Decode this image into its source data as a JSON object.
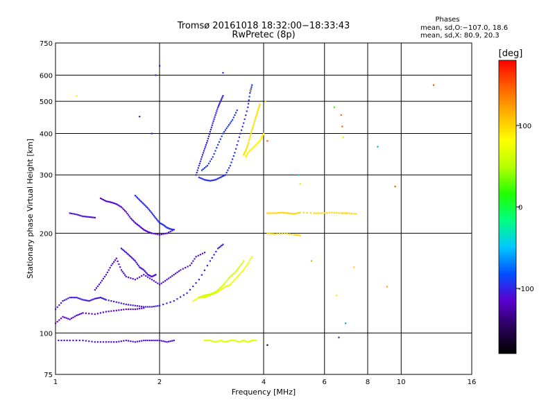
{
  "chart_data": {
    "type": "scatter",
    "title": "Tromsø 20161018 18:32:00−18:33:43",
    "subtitle": "RwPretec (8p)",
    "info_title": "Phases",
    "info_line1": "mean, sd,O:−107.0, 18.6",
    "info_line2": "mean, sd,X:  80.9, 20.3",
    "xlabel": "Frequency [MHz]",
    "ylabel": "Stationary phase Virtual Height [km]",
    "x_scale": "log",
    "y_scale": "log",
    "xlim": [
      1,
      16
    ],
    "ylim": [
      75,
      750
    ],
    "x_ticks": [
      1,
      2,
      4,
      6,
      8,
      10,
      16
    ],
    "y_ticks": [
      75,
      100,
      200,
      300,
      400,
      500,
      600,
      750
    ],
    "x_gridlines": [
      2,
      4,
      6,
      8,
      10
    ],
    "y_gridlines": [
      100,
      200,
      300,
      400,
      500,
      600
    ],
    "colorbar": {
      "label": "[deg]",
      "ticks": [
        100,
        0,
        -100
      ],
      "range": [
        -180,
        180
      ],
      "colors": [
        "#000000",
        "#2a005a",
        "#5a00d0",
        "#0050ff",
        "#00c8ff",
        "#00ff80",
        "#20ff00",
        "#b4ff00",
        "#ffff00",
        "#ffb400",
        "#ff6000",
        "#ff0000"
      ]
    },
    "traces": [
      {
        "phase": -105,
        "points": [
          [
            1.0,
            118
          ],
          [
            1.05,
            125
          ],
          [
            1.1,
            128
          ],
          [
            1.15,
            128
          ],
          [
            1.2,
            126
          ],
          [
            1.25,
            125
          ],
          [
            1.3,
            127
          ],
          [
            1.35,
            128
          ],
          [
            1.4,
            126
          ],
          [
            1.5,
            124
          ],
          [
            1.6,
            122
          ],
          [
            1.7,
            121
          ],
          [
            1.8,
            120
          ],
          [
            1.9,
            120
          ],
          [
            2.0,
            121
          ],
          [
            2.2,
            125
          ],
          [
            2.4,
            132
          ],
          [
            2.6,
            145
          ],
          [
            2.8,
            165
          ],
          [
            2.95,
            180
          ],
          [
            3.05,
            185
          ]
        ]
      },
      {
        "phase": -115,
        "points": [
          [
            1.0,
            107
          ],
          [
            1.05,
            112
          ],
          [
            1.1,
            110
          ],
          [
            1.15,
            113
          ],
          [
            1.2,
            115
          ],
          [
            1.3,
            114
          ],
          [
            1.4,
            116
          ],
          [
            1.5,
            117
          ],
          [
            1.6,
            118
          ],
          [
            1.7,
            118
          ],
          [
            1.8,
            119
          ]
        ]
      },
      {
        "phase": -110,
        "points": [
          [
            1.3,
            135
          ],
          [
            1.35,
            142
          ],
          [
            1.4,
            150
          ],
          [
            1.45,
            160
          ],
          [
            1.5,
            168
          ],
          [
            1.55,
            155
          ],
          [
            1.6,
            148
          ],
          [
            1.7,
            145
          ],
          [
            1.8,
            150
          ],
          [
            1.9,
            145
          ],
          [
            2.0,
            140
          ],
          [
            2.1,
            145
          ],
          [
            2.2,
            150
          ],
          [
            2.3,
            155
          ],
          [
            2.45,
            160
          ],
          [
            2.55,
            170
          ],
          [
            2.7,
            175
          ]
        ]
      },
      {
        "phase": -108,
        "points": [
          [
            1.55,
            180
          ],
          [
            1.6,
            175
          ],
          [
            1.65,
            170
          ],
          [
            1.7,
            165
          ],
          [
            1.75,
            158
          ],
          [
            1.8,
            155
          ],
          [
            1.85,
            150
          ],
          [
            1.9,
            148
          ],
          [
            1.95,
            150
          ]
        ]
      },
      {
        "phase": -112,
        "points": [
          [
            1.35,
            255
          ],
          [
            1.4,
            250
          ],
          [
            1.45,
            248
          ],
          [
            1.5,
            245
          ],
          [
            1.55,
            240
          ],
          [
            1.6,
            232
          ],
          [
            1.65,
            222
          ],
          [
            1.7,
            215
          ],
          [
            1.75,
            210
          ],
          [
            1.8,
            205
          ],
          [
            1.85,
            202
          ],
          [
            1.9,
            200
          ],
          [
            2.0,
            198
          ],
          [
            2.1,
            200
          ],
          [
            2.2,
            205
          ]
        ]
      },
      {
        "phase": -95,
        "points": [
          [
            1.7,
            260
          ],
          [
            1.75,
            252
          ],
          [
            1.8,
            245
          ],
          [
            1.85,
            238
          ],
          [
            1.9,
            230
          ],
          [
            1.95,
            222
          ],
          [
            2.0,
            215
          ],
          [
            2.05,
            212
          ],
          [
            2.1,
            208
          ],
          [
            2.15,
            206
          ],
          [
            2.2,
            205
          ]
        ]
      },
      {
        "phase": -110,
        "points": [
          [
            1.1,
            230
          ],
          [
            1.15,
            228
          ],
          [
            1.2,
            225
          ],
          [
            1.25,
            224
          ],
          [
            1.3,
            223
          ]
        ]
      },
      {
        "phase": -100,
        "points": [
          [
            2.55,
            300
          ],
          [
            2.6,
            320
          ],
          [
            2.65,
            340
          ],
          [
            2.7,
            360
          ],
          [
            2.75,
            380
          ],
          [
            2.8,
            405
          ],
          [
            2.85,
            430
          ],
          [
            2.9,
            455
          ],
          [
            2.95,
            480
          ],
          [
            3.0,
            500
          ],
          [
            3.05,
            520
          ]
        ]
      },
      {
        "phase": -95,
        "points": [
          [
            2.6,
            295
          ],
          [
            2.7,
            290
          ],
          [
            2.8,
            288
          ],
          [
            2.9,
            290
          ],
          [
            3.0,
            295
          ],
          [
            3.1,
            300
          ],
          [
            3.2,
            320
          ],
          [
            3.3,
            350
          ],
          [
            3.4,
            390
          ],
          [
            3.5,
            430
          ],
          [
            3.6,
            480
          ],
          [
            3.65,
            530
          ],
          [
            3.7,
            560
          ]
        ]
      },
      {
        "phase": -92,
        "points": [
          [
            2.65,
            310
          ],
          [
            2.75,
            320
          ],
          [
            2.85,
            340
          ],
          [
            2.95,
            370
          ],
          [
            3.05,
            400
          ],
          [
            3.15,
            420
          ],
          [
            3.25,
            440
          ],
          [
            3.35,
            470
          ]
        ]
      },
      {
        "phase": 95,
        "points": [
          [
            3.5,
            345
          ],
          [
            3.55,
            355
          ],
          [
            3.6,
            370
          ],
          [
            3.65,
            390
          ],
          [
            3.7,
            410
          ],
          [
            3.75,
            430
          ],
          [
            3.8,
            450
          ],
          [
            3.85,
            470
          ],
          [
            3.9,
            490
          ]
        ]
      },
      {
        "phase": 85,
        "points": [
          [
            3.55,
            340
          ],
          [
            3.6,
            350
          ],
          [
            3.7,
            360
          ],
          [
            3.8,
            370
          ],
          [
            3.9,
            380
          ],
          [
            3.95,
            390
          ],
          [
            4.0,
            400
          ]
        ]
      },
      {
        "phase": 75,
        "points": [
          [
            2.5,
            125
          ],
          [
            2.6,
            128
          ],
          [
            2.7,
            128
          ],
          [
            2.8,
            130
          ],
          [
            2.9,
            132
          ],
          [
            3.0,
            135
          ],
          [
            3.1,
            138
          ],
          [
            3.2,
            140
          ],
          [
            3.3,
            145
          ],
          [
            3.4,
            150
          ],
          [
            3.5,
            155
          ],
          [
            3.6,
            162
          ],
          [
            3.7,
            170
          ]
        ]
      },
      {
        "phase": 60,
        "points": [
          [
            2.6,
            128
          ],
          [
            2.7,
            130
          ],
          [
            2.8,
            131
          ],
          [
            2.9,
            133
          ],
          [
            3.0,
            137
          ],
          [
            3.1,
            142
          ],
          [
            3.2,
            148
          ],
          [
            3.3,
            152
          ],
          [
            3.4,
            158
          ],
          [
            3.5,
            165
          ]
        ]
      },
      {
        "phase": -110,
        "points": [
          [
            1.02,
            95
          ],
          [
            1.1,
            95
          ],
          [
            1.2,
            95
          ],
          [
            1.3,
            94
          ],
          [
            1.4,
            94
          ],
          [
            1.5,
            94
          ],
          [
            1.6,
            95
          ],
          [
            1.7,
            94
          ],
          [
            1.8,
            95
          ],
          [
            1.9,
            95
          ],
          [
            2.0,
            95
          ],
          [
            2.1,
            94
          ],
          [
            2.2,
            95
          ]
        ]
      },
      {
        "phase": 70,
        "points": [
          [
            2.7,
            95
          ],
          [
            2.8,
            95
          ],
          [
            2.9,
            94
          ],
          [
            3.0,
            95
          ],
          [
            3.1,
            94
          ],
          [
            3.2,
            95
          ],
          [
            3.3,
            95
          ],
          [
            3.4,
            94
          ],
          [
            3.5,
            95
          ],
          [
            3.6,
            94
          ],
          [
            3.7,
            95
          ],
          [
            3.8,
            95
          ]
        ]
      },
      {
        "phase": 100,
        "points": [
          [
            4.1,
            230
          ],
          [
            4.3,
            230
          ],
          [
            4.5,
            231
          ],
          [
            4.7,
            230
          ],
          [
            4.9,
            229
          ],
          [
            5.1,
            231
          ],
          [
            5.6,
            230
          ],
          [
            5.9,
            230
          ],
          [
            6.3,
            231
          ],
          [
            6.7,
            230
          ],
          [
            7.0,
            230
          ],
          [
            7.4,
            229
          ]
        ]
      },
      {
        "phase": 100,
        "points": [
          [
            4.1,
            200
          ],
          [
            4.3,
            199
          ],
          [
            4.6,
            200
          ],
          [
            4.9,
            198
          ],
          [
            5.1,
            197
          ]
        ]
      }
    ],
    "scattered_points": [
      [
        1.15,
        520,
        90
      ],
      [
        1.75,
        450,
        -110
      ],
      [
        1.9,
        400,
        -100
      ],
      [
        1.95,
        600,
        -105
      ],
      [
        2.0,
        640,
        -105
      ],
      [
        3.05,
        610,
        -100
      ],
      [
        3.65,
        540,
        110
      ],
      [
        4.05,
        500,
        100
      ],
      [
        4.1,
        380,
        150
      ],
      [
        5.05,
        300,
        -40
      ],
      [
        5.1,
        282,
        60
      ],
      [
        6.4,
        480,
        20
      ],
      [
        6.7,
        455,
        150
      ],
      [
        6.75,
        420,
        150
      ],
      [
        6.8,
        390,
        60
      ],
      [
        8.55,
        365,
        -60
      ],
      [
        9.6,
        277,
        150
      ],
      [
        12.4,
        560,
        150
      ],
      [
        6.6,
        97,
        -110
      ],
      [
        6.9,
        107,
        -60
      ],
      [
        7.3,
        158,
        100
      ],
      [
        9.1,
        138,
        120
      ],
      [
        4.1,
        92,
        -170
      ],
      [
        5.5,
        165,
        120
      ],
      [
        6.5,
        130,
        90
      ]
    ]
  }
}
